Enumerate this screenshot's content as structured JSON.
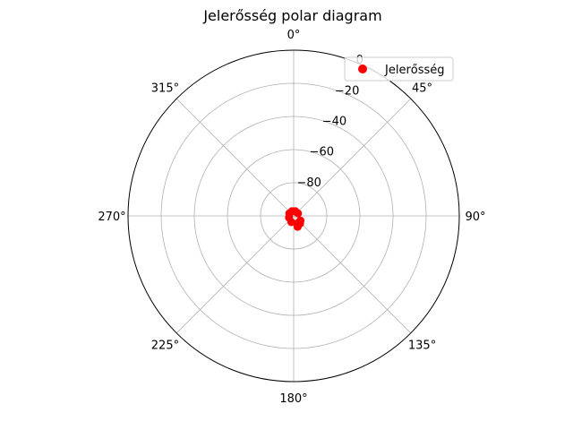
{
  "chart_data": {
    "type": "scatter",
    "projection": "polar",
    "title": "Jelerősség polar diagram",
    "theta_zero_location": "top",
    "theta_direction": "clockwise",
    "theta_ticks": [
      "0°",
      "45°",
      "90°",
      "135°",
      "180°",
      "225°",
      "270°",
      "315°"
    ],
    "r_ticks": [
      "0",
      "−20",
      "−40",
      "−60",
      "−80"
    ],
    "r_tick_values": [
      0,
      -20,
      -40,
      -60,
      -80
    ],
    "rlim": [
      -100,
      0
    ],
    "grid": true,
    "legend": {
      "placement": "top-right",
      "entries": [
        "Jelerősség"
      ]
    },
    "series": [
      {
        "name": "Jelerősség",
        "marker_color": "#ff0000",
        "line_color": "#0000ff",
        "points": [
          {
            "theta": 150,
            "r": -95
          },
          {
            "theta": 140,
            "r": -94
          },
          {
            "theta": 125,
            "r": -95
          },
          {
            "theta": 60,
            "r": -97
          },
          {
            "theta": 20,
            "r": -97
          },
          {
            "theta": 340,
            "r": -97
          },
          {
            "theta": 300,
            "r": -97
          },
          {
            "theta": 250,
            "r": -97
          },
          {
            "theta": 200,
            "r": -96
          },
          {
            "theta": 160,
            "r": -93
          }
        ]
      }
    ]
  }
}
